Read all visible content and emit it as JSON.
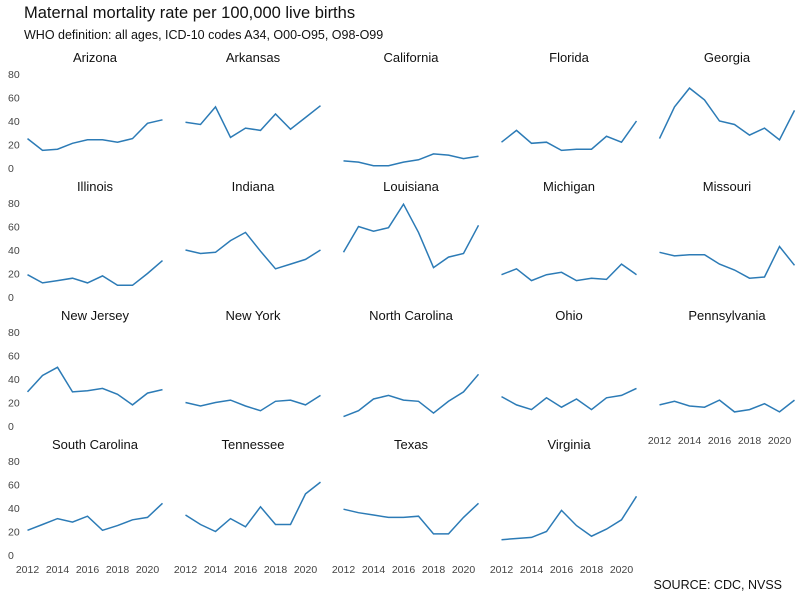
{
  "title": "Maternal mortality rate per 100,000 live births",
  "subtitle": "WHO definition: all ages, ICD-10 codes A34, O00-O95, O98-O99",
  "source": "SOURCE: CDC, NVSS",
  "colors": {
    "line": "#2c7bb6",
    "text": "#111111",
    "tick": "#444444"
  },
  "chart_data": {
    "type": "line",
    "layout": "small-multiples",
    "x": [
      2012,
      2013,
      2014,
      2015,
      2016,
      2017,
      2018,
      2019,
      2020,
      2021
    ],
    "x_ticks": [
      2012,
      2014,
      2016,
      2018,
      2020
    ],
    "x_tick_labels": [
      "2012",
      "2014",
      "2016",
      "2018",
      "2020"
    ],
    "y_ticks": [
      0,
      20,
      40,
      60,
      80
    ],
    "y_tick_labels": [
      "0",
      "20",
      "40",
      "60",
      "80"
    ],
    "xlim": [
      2011.5,
      2021.5
    ],
    "ylim": [
      0,
      80
    ],
    "grid": false,
    "panels": [
      {
        "name": "Arizona",
        "values": [
          25,
          15,
          16,
          21,
          24,
          24,
          22,
          25,
          38,
          41
        ]
      },
      {
        "name": "Arkansas",
        "values": [
          39,
          37,
          52,
          26,
          34,
          32,
          46,
          33,
          43,
          53
        ]
      },
      {
        "name": "California",
        "values": [
          6,
          5,
          2,
          2,
          5,
          7,
          12,
          11,
          8,
          10
        ]
      },
      {
        "name": "Florida",
        "values": [
          22,
          32,
          21,
          22,
          15,
          16,
          16,
          27,
          22,
          40
        ]
      },
      {
        "name": "Georgia",
        "values": [
          25,
          52,
          68,
          58,
          40,
          37,
          28,
          34,
          24,
          49
        ]
      },
      {
        "name": "Illinois",
        "values": [
          19,
          12,
          14,
          16,
          12,
          18,
          10,
          10,
          20,
          31
        ]
      },
      {
        "name": "Indiana",
        "values": [
          40,
          37,
          38,
          48,
          55,
          39,
          24,
          28,
          32,
          40
        ]
      },
      {
        "name": "Louisiana",
        "values": [
          38,
          60,
          56,
          59,
          79,
          55,
          25,
          34,
          37,
          61
        ]
      },
      {
        "name": "Michigan",
        "values": [
          19,
          24,
          14,
          19,
          21,
          14,
          16,
          15,
          28,
          19
        ]
      },
      {
        "name": "Missouri",
        "values": [
          38,
          35,
          36,
          36,
          28,
          23,
          16,
          17,
          43,
          27
        ]
      },
      {
        "name": "New Jersey",
        "values": [
          29,
          43,
          50,
          29,
          30,
          32,
          27,
          18,
          28,
          31
        ]
      },
      {
        "name": "New York",
        "values": [
          20,
          17,
          20,
          22,
          17,
          13,
          21,
          22,
          18,
          26
        ]
      },
      {
        "name": "North Carolina",
        "values": [
          8,
          13,
          23,
          26,
          22,
          21,
          11,
          21,
          29,
          44
        ]
      },
      {
        "name": "Ohio",
        "values": [
          25,
          18,
          14,
          24,
          16,
          23,
          14,
          24,
          26,
          32
        ]
      },
      {
        "name": "Pennsylvania",
        "values": [
          18,
          21,
          17,
          16,
          22,
          12,
          14,
          19,
          12,
          22
        ]
      },
      {
        "name": "South Carolina",
        "values": [
          21,
          26,
          31,
          28,
          33,
          21,
          25,
          30,
          32,
          44
        ]
      },
      {
        "name": "Tennessee",
        "values": [
          34,
          26,
          20,
          31,
          24,
          41,
          26,
          26,
          52,
          62
        ]
      },
      {
        "name": "Texas",
        "values": [
          39,
          36,
          34,
          32,
          32,
          33,
          18,
          18,
          32,
          44
        ]
      },
      {
        "name": "Virginia",
        "values": [
          13,
          14,
          15,
          20,
          38,
          25,
          16,
          22,
          30,
          50
        ]
      }
    ]
  }
}
